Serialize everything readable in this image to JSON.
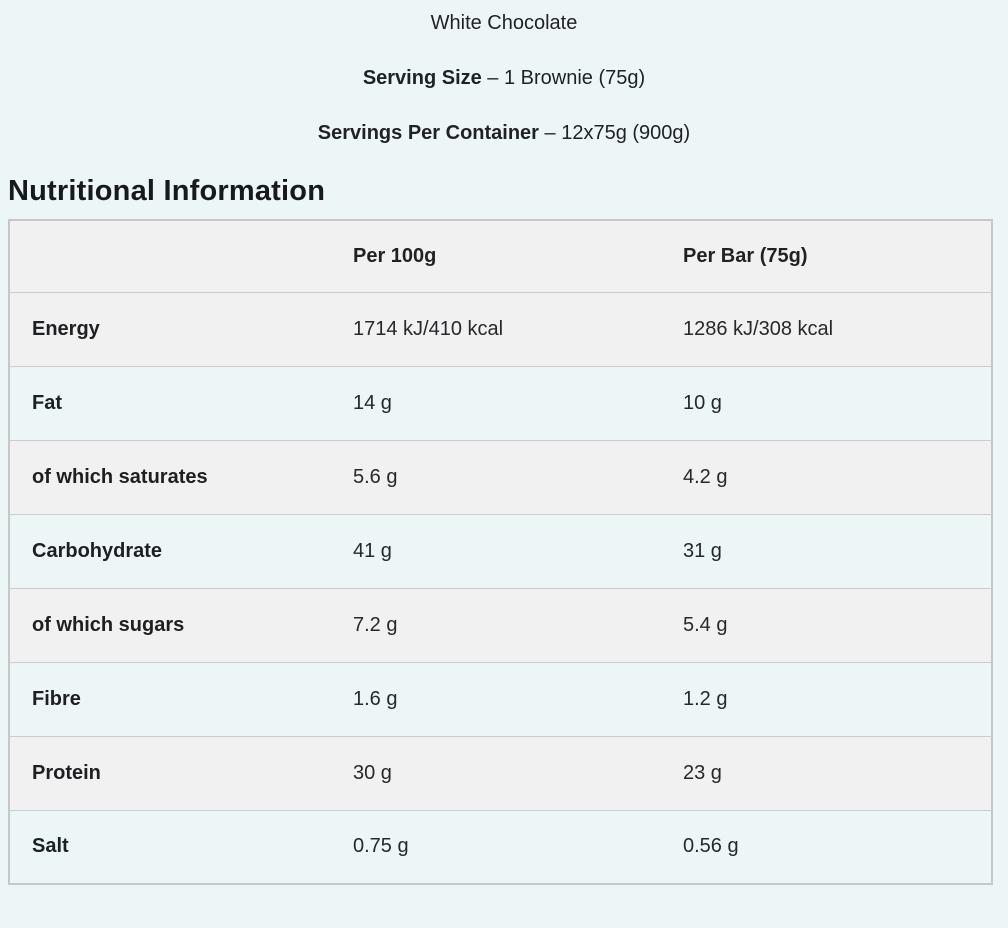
{
  "colors": {
    "page_background": "#edf6f6",
    "row_alt_background": "#f0f1f0",
    "table_border": "#c6c8c8",
    "text": "#1f2124"
  },
  "header": {
    "product_name": "White Chocolate",
    "serving_size_label": "Serving Size",
    "serving_size_value": " – 1 Brownie (75g)",
    "servings_per_container_label": "Servings Per Container",
    "servings_per_container_value": " – 12x75g (900g)"
  },
  "section_title": "Nutritional Information",
  "table": {
    "columns": [
      "",
      "Per 100g",
      "Per Bar (75g)"
    ],
    "rows": [
      {
        "label": "Energy",
        "per_100g": "1714 kJ/410 kcal",
        "per_bar": "1286 kJ/308 kcal"
      },
      {
        "label": "Fat",
        "per_100g": "14 g",
        "per_bar": "10 g"
      },
      {
        "label": "of which saturates",
        "per_100g": "5.6 g",
        "per_bar": "4.2 g"
      },
      {
        "label": "Carbohydrate",
        "per_100g": "41 g",
        "per_bar": "31 g"
      },
      {
        "label": "of which sugars",
        "per_100g": "7.2 g",
        "per_bar": "5.4 g"
      },
      {
        "label": "Fibre",
        "per_100g": "1.6 g",
        "per_bar": "1.2 g"
      },
      {
        "label": "Protein",
        "per_100g": "30 g",
        "per_bar": "23 g"
      },
      {
        "label": "Salt",
        "per_100g": "0.75 g",
        "per_bar": "0.56 g"
      }
    ]
  }
}
